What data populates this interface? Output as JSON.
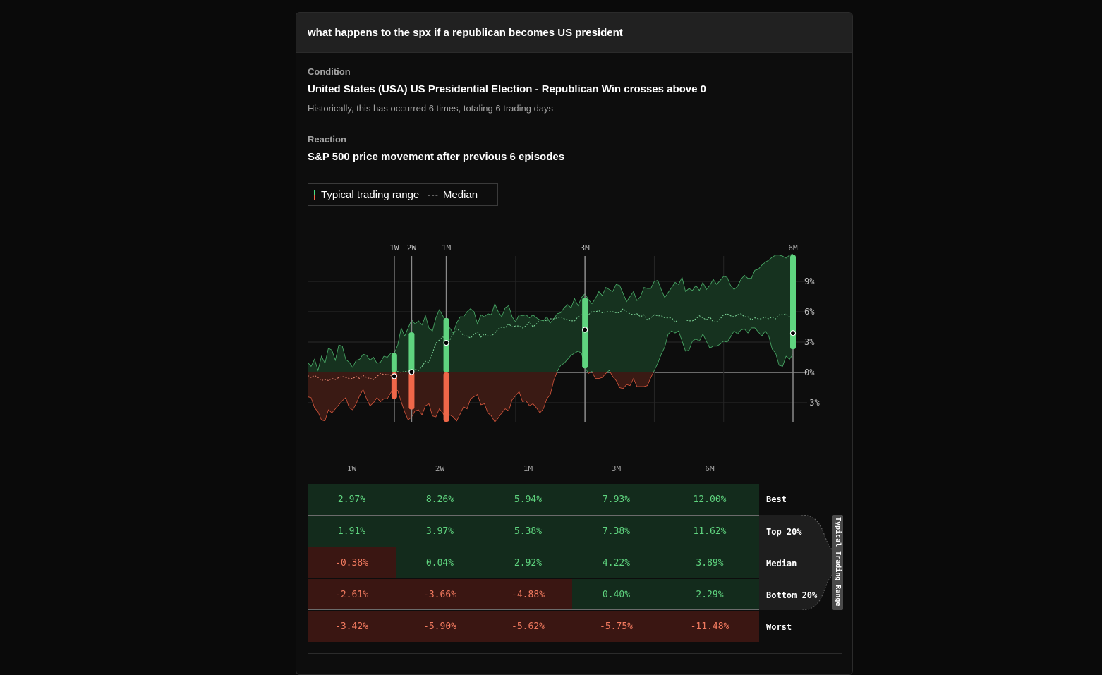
{
  "header": {
    "query": "what happens to the spx if a republican becomes US president"
  },
  "condition": {
    "label": "Condition",
    "title": "United States (USA) US Presidential Election - Republican Win crosses above 0",
    "subtitle": "Historically, this has occurred 6 times, totaling 6 trading days"
  },
  "reaction": {
    "label": "Reaction",
    "title_prefix": "S&P 500 price movement after previous",
    "episodes_link": "6 episodes"
  },
  "legend": {
    "range": "Typical trading range",
    "median": "Median"
  },
  "colors": {
    "positive": "#5fd47f",
    "negative": "#f06749",
    "pos_fill": "#132b1c",
    "neg_fill": "#3a1612"
  },
  "chart_data": {
    "type": "area",
    "y_tick_labels": [
      "9%",
      "6%",
      "3%",
      "0%",
      "-3%"
    ],
    "y_ticks": [
      9,
      6,
      3,
      0,
      -3
    ],
    "ylim": [
      -5,
      12
    ],
    "xlim": [
      0,
      140
    ],
    "horizons": [
      {
        "label": "1W",
        "x": 25,
        "top": 1.91,
        "bottom": -2.61,
        "median": -0.38
      },
      {
        "label": "2W",
        "x": 30,
        "top": 3.97,
        "bottom": -3.66,
        "median": 0.04
      },
      {
        "label": "1M",
        "x": 40,
        "top": 5.38,
        "bottom": -4.88,
        "median": 2.92
      },
      {
        "label": "3M",
        "x": 80,
        "top": 7.38,
        "bottom": 0.4,
        "median": 4.22
      },
      {
        "label": "6M",
        "x": 140,
        "top": 11.62,
        "bottom": 2.29,
        "median": 3.89
      }
    ],
    "upper": [
      1,
      0.6,
      1.3,
      0.2,
      1.6,
      0.9,
      2.4,
      2.2,
      1.2,
      2.7,
      2.6,
      1.3,
      1.0,
      0.5,
      1.2,
      1.3,
      1.8,
      1.7,
      1.2,
      1.5,
      0.9,
      1.0,
      1.6,
      1.5,
      1.9,
      1.9,
      2.7,
      4.4,
      3.6,
      4.4,
      5.2,
      4.8,
      5.1,
      4.7,
      5.6,
      4.4,
      4.1,
      5.4,
      6.2,
      5.6,
      4.9,
      4.4,
      3.9,
      4.9,
      5.5,
      5.5,
      6.0,
      6.3,
      6.0,
      4.8,
      5.7,
      5.5,
      5.8,
      5.7,
      6.8,
      6.0,
      5.5,
      6.4,
      6.6,
      5.5,
      5.0,
      5.7,
      5.6,
      5.7,
      5.4,
      5.7,
      5.4,
      5.2,
      5.1,
      5.5,
      4.9,
      5.3,
      5.8,
      5.9,
      6.4,
      6.7,
      6.4,
      7.3,
      6.6,
      7.4,
      7.8,
      7.2,
      6.8,
      7.3,
      8.0,
      7.6,
      8.4,
      8.2,
      8.0,
      8.7,
      8.6,
      7.8,
      7.0,
      7.5,
      8.0,
      7.1,
      7.5,
      8.4,
      8.3,
      8.3,
      9.0,
      9.1,
      8.2,
      7.4,
      7.9,
      8.4,
      8.9,
      8.7,
      9.4,
      8.0,
      8.3,
      8.1,
      8.6,
      8.1,
      8.9,
      8.2,
      8.6,
      9.2,
      8.7,
      9.1,
      9.5,
      9.4,
      8.6,
      8.2,
      8.5,
      9.2,
      9.6,
      9.3,
      9.3,
      10.1,
      10.2,
      10.6,
      10.9,
      11.1,
      11.4,
      11.6,
      11.6,
      11.5,
      11.3,
      11.6,
      11.7
    ],
    "lower": [
      -2.4,
      -2.5,
      -3.5,
      -3.9,
      -4.7,
      -4.8,
      -3.7,
      -4.0,
      -3.6,
      -3.2,
      -2.8,
      -2.5,
      -3.5,
      -3.7,
      -3.1,
      -2.3,
      -1.7,
      -2.6,
      -3.3,
      -3.0,
      -2.5,
      -2.9,
      -2.6,
      -2.6,
      -2.0,
      -1.6,
      -1.8,
      -2.9,
      -3.9,
      -4.7,
      -4.4,
      -3.8,
      -3.7,
      -4.2,
      -3.3,
      -3.1,
      -4.3,
      -4.4,
      -3.6,
      -4.0,
      -4.8,
      -4.2,
      -4.4,
      -4.8,
      -4.1,
      -3.4,
      -3.6,
      -2.6,
      -2.4,
      -2.2,
      -3.2,
      -3.1,
      -4.0,
      -4.3,
      -4.9,
      -4.5,
      -4.0,
      -3.6,
      -3.8,
      -2.7,
      -2.3,
      -1.9,
      -2.9,
      -2.8,
      -3.3,
      -3.1,
      -3.5,
      -4.0,
      -3.6,
      -2.6,
      -2.2,
      -0.8,
      0.1,
      0.7,
      0.9,
      1.3,
      1.7,
      1.9,
      2.1,
      1.9,
      0.5,
      -0.1,
      0.1,
      -0.6,
      -0.6,
      -0.5,
      -0.1,
      0.2,
      -0.4,
      -0.8,
      -1.5,
      -1.6,
      -1.2,
      -1.3,
      -0.6,
      -1.4,
      -1.4,
      -1.4,
      -1.3,
      -0.5,
      0.2,
      0.9,
      1.8,
      2.5,
      3.8,
      4.1,
      3.9,
      4.1,
      3.1,
      2.1,
      2.2,
      3.1,
      3.3,
      3.1,
      3.8,
      3.1,
      2.4,
      2.6,
      2.6,
      2.8,
      3.1,
      3.0,
      3.5,
      4.1,
      3.8,
      4.2,
      4.3,
      3.9,
      4.4,
      4.4,
      4.0,
      3.6,
      4.1,
      3.6,
      2.3,
      1.9,
      0.7,
      0.6,
      1.6,
      1.3,
      1.8
    ],
    "median_line": [
      -0.3,
      -0.5,
      -0.3,
      -0.5,
      -0.8,
      -0.7,
      -0.8,
      -0.6,
      -0.7,
      -0.5,
      -0.4,
      -0.5,
      -0.6,
      -0.6,
      -0.4,
      -0.6,
      -0.3,
      -0.5,
      -0.6,
      -0.7,
      -0.4,
      -0.1,
      -0.2,
      -0.2,
      -0.3,
      -0.3,
      0.1,
      0.0,
      0.1,
      0.1,
      0.4,
      0.3,
      0.2,
      0.6,
      1.1,
      1.0,
      1.9,
      2.9,
      3.2,
      3.5,
      3.4,
      3.2,
      3.8,
      4.3,
      4.1,
      3.6,
      3.6,
      3.4,
      3.8,
      4.0,
      3.5,
      3.8,
      3.6,
      3.6,
      3.9,
      4.3,
      4.5,
      4.4,
      4.8,
      4.5,
      4.6,
      4.6,
      4.4,
      4.6,
      5.0,
      4.5,
      4.8,
      5.2,
      5.2,
      5.1,
      5.3,
      5.3,
      5.4,
      5.5,
      5.3,
      5.2,
      5.1,
      5.1,
      5.5,
      5.7,
      5.7,
      5.7,
      6.0,
      6.0,
      6.1,
      5.9,
      6.0,
      6.0,
      6.0,
      5.9,
      5.9,
      6.3,
      6.0,
      5.8,
      5.7,
      5.8,
      5.5,
      5.7,
      5.2,
      5.4,
      5.7,
      5.6,
      5.6,
      5.4,
      5.4,
      5.4,
      5.0,
      5.2,
      5.2,
      5.2,
      5.1,
      5.1,
      5.3,
      5.6,
      5.4,
      5.2,
      5.5,
      5.0,
      5.0,
      5.3,
      5.7,
      5.8,
      5.6,
      5.5,
      5.7,
      5.8,
      5.5,
      5.5,
      5.2,
      5.4,
      5.3,
      5.3,
      5.5,
      5.3,
      5.5,
      5.3,
      5.7,
      5.7,
      5.8,
      5.5,
      5.3
    ]
  },
  "table": {
    "columns": [
      "1W",
      "2W",
      "1M",
      "3M",
      "6M"
    ],
    "range_label": "Typical Trading Range",
    "rows": [
      {
        "label": "Best",
        "values": [
          "2.97%",
          "8.26%",
          "5.94%",
          "7.93%",
          "12.00%"
        ]
      },
      {
        "label": "Top 20%",
        "values": [
          "1.91%",
          "3.97%",
          "5.38%",
          "7.38%",
          "11.62%"
        ]
      },
      {
        "label": "Median",
        "values": [
          "-0.38%",
          "0.04%",
          "2.92%",
          "4.22%",
          "3.89%"
        ]
      },
      {
        "label": "Bottom 20%",
        "values": [
          "-2.61%",
          "-3.66%",
          "-4.88%",
          "0.40%",
          "2.29%"
        ]
      },
      {
        "label": "Worst",
        "values": [
          "-3.42%",
          "-5.90%",
          "-5.62%",
          "-5.75%",
          "-11.48%"
        ]
      }
    ]
  }
}
